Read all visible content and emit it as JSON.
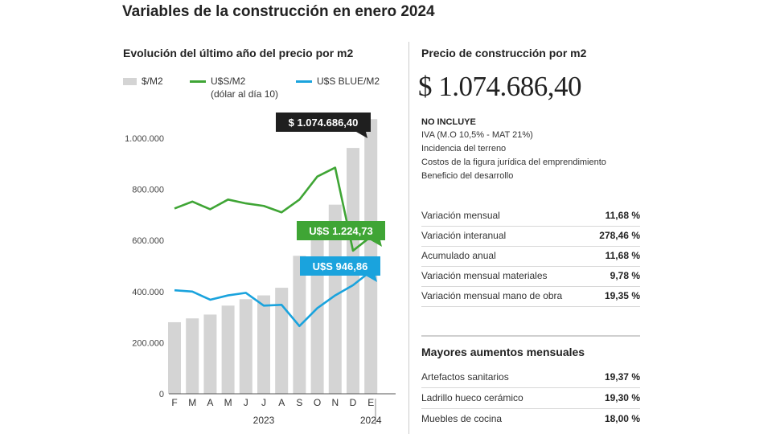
{
  "title": "Variables de la construcción en enero 2024",
  "chart_subtitle": "Evolución del último año del precio por m2",
  "legend": [
    {
      "label": "$/M2",
      "sub": "",
      "color": "#d4d4d4"
    },
    {
      "label": "U$S/M2",
      "sub": "(dólar al día 10)",
      "color": "#3fa535"
    },
    {
      "label": "U$S BLUE/M2",
      "sub": "",
      "color": "#1aa3dd"
    }
  ],
  "chart_data": {
    "type": "bar",
    "categories": [
      "F",
      "M",
      "A",
      "M",
      "J",
      "J",
      "A",
      "S",
      "O",
      "N",
      "D",
      "E"
    ],
    "years": [
      {
        "label": "2023",
        "from_index": 0,
        "to_index": 10
      },
      {
        "label": "2024",
        "from_index": 11,
        "to_index": 11
      }
    ],
    "ylim": [
      0,
      1100000
    ],
    "yticks": [
      {
        "value": 0,
        "label": "0"
      },
      {
        "value": 200000,
        "label": "200.000"
      },
      {
        "value": 400000,
        "label": "400.000"
      },
      {
        "value": 600000,
        "label": "600.000"
      },
      {
        "value": 800000,
        "label": "800.000"
      },
      {
        "value": 1000000,
        "label": "1.000.000"
      }
    ],
    "series": [
      {
        "name": "$/M2",
        "kind": "bar",
        "color": "#d4d4d4",
        "values": [
          280000,
          295000,
          310000,
          345000,
          370000,
          385000,
          415000,
          540000,
          640000,
          740000,
          962000,
          1074686.4
        ]
      },
      {
        "name": "U$S/M2",
        "kind": "line",
        "color": "#3fa535",
        "values": [
          725000,
          752000,
          722000,
          760000,
          745000,
          735000,
          710000,
          760000,
          850000,
          885000,
          560000,
          615000
        ]
      },
      {
        "name": "U$S BLUE/M2",
        "kind": "line",
        "color": "#1aa3dd",
        "values": [
          405000,
          400000,
          368000,
          385000,
          395000,
          345000,
          348000,
          265000,
          335000,
          385000,
          425000,
          480000
        ]
      }
    ],
    "annotations": [
      {
        "text": "$ 1.074.686,40",
        "color": "#1f1f1f",
        "text_color": "#ffffff",
        "index": 11,
        "value": 1074686.4
      },
      {
        "text": "U$S 1.224,73",
        "color": "#3fa535",
        "text_color": "#ffffff",
        "index": 11,
        "value": 615000
      },
      {
        "text": "U$S 946,86",
        "color": "#1aa3dd",
        "text_color": "#ffffff",
        "index": 11,
        "value": 480000
      }
    ],
    "grid": false,
    "legend_position": "top-left"
  },
  "right_panel": {
    "title": "Precio de construcción por m2",
    "price": "$ 1.074.686,40",
    "not_included_title": "NO INCLUYE",
    "not_included": [
      "IVA (M.O 10,5% - MAT 21%)",
      "Incidencia del terreno",
      "Costos de la figura jurídica del emprendimiento",
      "Beneficio del desarrollo"
    ],
    "variations": [
      {
        "label": "Variación mensual",
        "value": "11,68 %"
      },
      {
        "label": "Variación interanual",
        "value": "278,46 %"
      },
      {
        "label": "Acumulado anual",
        "value": "11,68 %"
      },
      {
        "label": "Variación mensual materiales",
        "value": "9,78 %"
      },
      {
        "label": "Variación mensual mano de obra",
        "value": "19,35 %"
      }
    ],
    "increases_title": "Mayores aumentos mensuales",
    "increases": [
      {
        "label": "Artefactos sanitarios",
        "value": "19,37 %"
      },
      {
        "label": "Ladrillo hueco cerámico",
        "value": "19,30 %"
      },
      {
        "label": "Muebles de cocina",
        "value": "18,00 %"
      }
    ]
  }
}
